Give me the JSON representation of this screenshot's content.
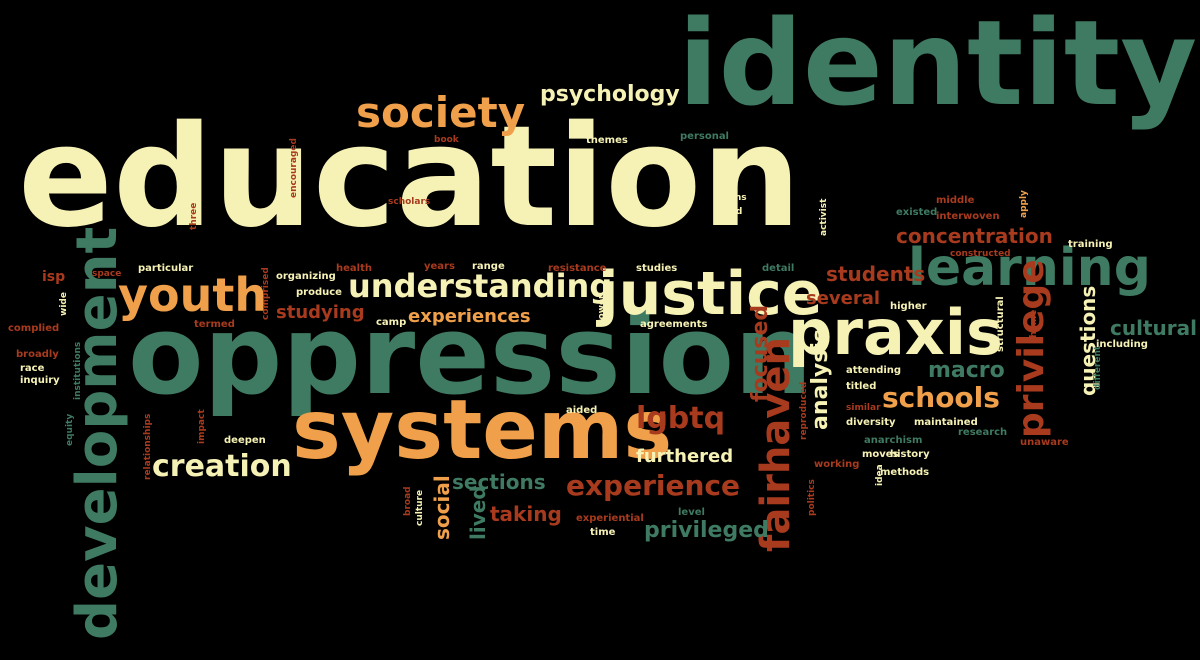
{
  "palette": {
    "cream": "#f6f2b5",
    "green": "#3f7a62",
    "orange": "#f0a04a",
    "red": "#a83a1e",
    "tan": "#c58e52"
  },
  "words": [
    {
      "text": "identity",
      "color": "#3f7a62",
      "vertical": false
    },
    {
      "text": "education",
      "color": "#f6f2b5",
      "vertical": false
    },
    {
      "text": "oppression",
      "color": "#3f7a62",
      "vertical": false
    },
    {
      "text": "systems",
      "color": "#f0a04a",
      "vertical": false
    },
    {
      "text": "development",
      "color": "#3f7a62",
      "vertical": true
    },
    {
      "text": "justice",
      "color": "#f6f2b5",
      "vertical": false
    },
    {
      "text": "praxis",
      "color": "#f6f2b5",
      "vertical": false
    },
    {
      "text": "learning",
      "color": "#3f7a62",
      "vertical": false
    },
    {
      "text": "youth",
      "color": "#f0a04a",
      "vertical": false
    },
    {
      "text": "society",
      "color": "#f0a04a",
      "vertical": false
    },
    {
      "text": "understanding",
      "color": "#f6f2b5",
      "vertical": false
    },
    {
      "text": "fairhaven",
      "color": "#a83a1e",
      "vertical": true
    },
    {
      "text": "creation",
      "color": "#f6f2b5",
      "vertical": false
    },
    {
      "text": "experience",
      "color": "#a83a1e",
      "vertical": false
    },
    {
      "text": "privilege",
      "color": "#a83a1e",
      "vertical": true
    },
    {
      "text": "schools",
      "color": "#f0a04a",
      "vertical": false
    },
    {
      "text": "psychology",
      "color": "#f6f2b5",
      "vertical": false
    },
    {
      "text": "students",
      "color": "#a83a1e",
      "vertical": false
    },
    {
      "text": "concentration",
      "color": "#a83a1e",
      "vertical": false
    },
    {
      "text": "lgbtq",
      "color": "#a83a1e",
      "vertical": false
    },
    {
      "text": "experiences",
      "color": "#f0a04a",
      "vertical": false
    },
    {
      "text": "studying",
      "color": "#a83a1e",
      "vertical": false
    },
    {
      "text": "several",
      "color": "#a83a1e",
      "vertical": false
    },
    {
      "text": "macro",
      "color": "#3f7a62",
      "vertical": false
    },
    {
      "text": "cultural",
      "color": "#3f7a62",
      "vertical": false
    },
    {
      "text": "sections",
      "color": "#3f7a62",
      "vertical": false
    },
    {
      "text": "furthered",
      "color": "#f6f2b5",
      "vertical": false
    },
    {
      "text": "privileged",
      "color": "#3f7a62",
      "vertical": false
    },
    {
      "text": "taking",
      "color": "#a83a1e",
      "vertical": false
    },
    {
      "text": "focused",
      "color": "#a83a1e",
      "vertical": true
    },
    {
      "text": "analysis",
      "color": "#f6f2b5",
      "vertical": true
    },
    {
      "text": "questions",
      "color": "#f6f2b5",
      "vertical": true
    },
    {
      "text": "social",
      "color": "#f0a04a",
      "vertical": true
    },
    {
      "text": "lived",
      "color": "#3f7a62",
      "vertical": true
    },
    {
      "text": "isp",
      "color": "#a83a1e",
      "vertical": false
    },
    {
      "text": "themes",
      "color": "#f6f2b5",
      "vertical": false
    },
    {
      "text": "personal",
      "color": "#3f7a62",
      "vertical": false
    },
    {
      "text": "book",
      "color": "#a83a1e",
      "vertical": false
    },
    {
      "text": "trans",
      "color": "#f6f2b5",
      "vertical": false
    },
    {
      "text": "field",
      "color": "#f6f2b5",
      "vertical": false
    },
    {
      "text": "scholars",
      "color": "#a83a1e",
      "vertical": false
    },
    {
      "text": "encouraged",
      "color": "#a83a1e",
      "vertical": true
    },
    {
      "text": "three",
      "color": "#a83a1e",
      "vertical": true
    },
    {
      "text": "existed",
      "color": "#3f7a62",
      "vertical": false
    },
    {
      "text": "middle",
      "color": "#a83a1e",
      "vertical": false
    },
    {
      "text": "interwoven",
      "color": "#a83a1e",
      "vertical": false
    },
    {
      "text": "apply",
      "color": "#f0a04a",
      "vertical": true
    },
    {
      "text": "activist",
      "color": "#f6f2b5",
      "vertical": true
    },
    {
      "text": "constructed",
      "color": "#a83a1e",
      "vertical": false
    },
    {
      "text": "training",
      "color": "#f6f2b5",
      "vertical": false
    },
    {
      "text": "space",
      "color": "#a83a1e",
      "vertical": false
    },
    {
      "text": "particular",
      "color": "#f6f2b5",
      "vertical": false
    },
    {
      "text": "organizing",
      "color": "#f6f2b5",
      "vertical": false
    },
    {
      "text": "health",
      "color": "#a83a1e",
      "vertical": false
    },
    {
      "text": "years",
      "color": "#a83a1e",
      "vertical": false
    },
    {
      "text": "range",
      "color": "#f6f2b5",
      "vertical": false
    },
    {
      "text": "resistance",
      "color": "#a83a1e",
      "vertical": false
    },
    {
      "text": "studies",
      "color": "#f6f2b5",
      "vertical": false
    },
    {
      "text": "detail",
      "color": "#3f7a62",
      "vertical": false
    },
    {
      "text": "power",
      "color": "#f6f2b5",
      "vertical": true
    },
    {
      "text": "produce",
      "color": "#f6f2b5",
      "vertical": false
    },
    {
      "text": "comprised",
      "color": "#a83a1e",
      "vertical": true
    },
    {
      "text": "termed",
      "color": "#a83a1e",
      "vertical": false
    },
    {
      "text": "camp",
      "color": "#f6f2b5",
      "vertical": false
    },
    {
      "text": "agreements",
      "color": "#f6f2b5",
      "vertical": false
    },
    {
      "text": "higher",
      "color": "#f6f2b5",
      "vertical": false
    },
    {
      "text": "structural",
      "color": "#f6f2b5",
      "vertical": true
    },
    {
      "text": "theme",
      "color": "#a83a1e",
      "vertical": true
    },
    {
      "text": "including",
      "color": "#f6f2b5",
      "vertical": false
    },
    {
      "text": "different",
      "color": "#3f7a62",
      "vertical": true
    },
    {
      "text": "complied",
      "color": "#a83a1e",
      "vertical": false
    },
    {
      "text": "wide",
      "color": "#f6f2b5",
      "vertical": true
    },
    {
      "text": "broadly",
      "color": "#a83a1e",
      "vertical": false
    },
    {
      "text": "race",
      "color": "#f6f2b5",
      "vertical": false
    },
    {
      "text": "inquiry",
      "color": "#f6f2b5",
      "vertical": false
    },
    {
      "text": "institutions",
      "color": "#3f7a62",
      "vertical": true
    },
    {
      "text": "equity",
      "color": "#3f7a62",
      "vertical": true
    },
    {
      "text": "relationships",
      "color": "#a83a1e",
      "vertical": true
    },
    {
      "text": "impact",
      "color": "#a83a1e",
      "vertical": true
    },
    {
      "text": "deepen",
      "color": "#f6f2b5",
      "vertical": false
    },
    {
      "text": "aided",
      "color": "#f6f2b5",
      "vertical": false
    },
    {
      "text": "attending",
      "color": "#f6f2b5",
      "vertical": false
    },
    {
      "text": "titled",
      "color": "#f6f2b5",
      "vertical": false
    },
    {
      "text": "similar",
      "color": "#a83a1e",
      "vertical": false
    },
    {
      "text": "diversity",
      "color": "#f6f2b5",
      "vertical": false
    },
    {
      "text": "maintained",
      "color": "#f6f2b5",
      "vertical": false
    },
    {
      "text": "research",
      "color": "#3f7a62",
      "vertical": false
    },
    {
      "text": "unaware",
      "color": "#a83a1e",
      "vertical": false
    },
    {
      "text": "reproduced",
      "color": "#a83a1e",
      "vertical": true
    },
    {
      "text": "anarchism",
      "color": "#3f7a62",
      "vertical": false
    },
    {
      "text": "moves",
      "color": "#f6f2b5",
      "vertical": false
    },
    {
      "text": "history",
      "color": "#f6f2b5",
      "vertical": false
    },
    {
      "text": "working",
      "color": "#a83a1e",
      "vertical": false
    },
    {
      "text": "idea",
      "color": "#f6f2b5",
      "vertical": true
    },
    {
      "text": "methods",
      "color": "#f6f2b5",
      "vertical": false
    },
    {
      "text": "politics",
      "color": "#a83a1e",
      "vertical": true
    },
    {
      "text": "broad",
      "color": "#a83a1e",
      "vertical": true
    },
    {
      "text": "culture",
      "color": "#f6f2b5",
      "vertical": true
    },
    {
      "text": "experiential",
      "color": "#a83a1e",
      "vertical": false
    },
    {
      "text": "time",
      "color": "#f6f2b5",
      "vertical": false
    },
    {
      "text": "level",
      "color": "#3f7a62",
      "vertical": false
    }
  ]
}
